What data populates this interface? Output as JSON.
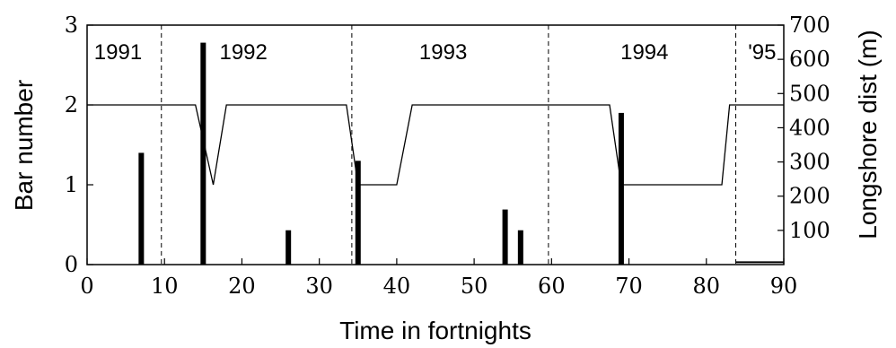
{
  "chart_data": {
    "type": "bar",
    "xlabel": "Time in fortnights",
    "ylabel_left": "Bar  number",
    "ylabel_right": "Longshore dist (m)",
    "xlim": [
      0,
      90
    ],
    "ylim_left": [
      0,
      3
    ],
    "ylim_right": [
      0,
      700
    ],
    "x_ticks": [
      "0",
      "10",
      "20",
      "30",
      "40",
      "50",
      "60",
      "70",
      "80",
      "90"
    ],
    "y_left_ticks": [
      "0",
      "1",
      "2",
      "3"
    ],
    "y_right_ticks": [
      "100",
      "200",
      "300",
      "400",
      "500",
      "600",
      "700"
    ],
    "year_boundaries": [
      9.6,
      34.2,
      59.6,
      83.8
    ],
    "year_labels": [
      {
        "text": "1991",
        "x": 4.0
      },
      {
        "text": "1992",
        "x": 20.2
      },
      {
        "text": "1993",
        "x": 46.0
      },
      {
        "text": "1994",
        "x": 72.0
      },
      {
        "text": "'95",
        "x": 87.2
      }
    ],
    "series": [
      {
        "type": "bar",
        "axis": "left",
        "x": [
          7,
          15,
          26,
          35,
          54,
          56,
          69
        ],
        "values": [
          1.4,
          2.78,
          0.43,
          1.3,
          0.69,
          0.43,
          1.9
        ]
      },
      {
        "type": "line",
        "axis": "left",
        "x": [
          0,
          14,
          16.3,
          18,
          33.5,
          35,
          40,
          42,
          67.5,
          69,
          82,
          83,
          90
        ],
        "values": [
          2,
          2,
          1,
          2,
          2,
          1,
          1,
          2,
          2,
          1,
          1,
          2,
          2
        ]
      },
      {
        "type": "line",
        "axis": "left",
        "x": [
          83.8,
          90
        ],
        "values": [
          0.03,
          0.03
        ]
      }
    ]
  }
}
